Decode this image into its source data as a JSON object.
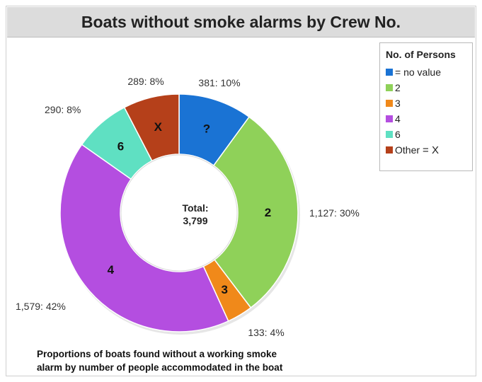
{
  "chart_data": {
    "type": "pie",
    "title": "Boats without smoke alarms by Crew No.",
    "center_label": [
      "Total:",
      "3,799"
    ],
    "legend_title": "No. of Persons",
    "legend_position": "top-right",
    "slices": [
      {
        "legend": "= no value",
        "legend_extra": "",
        "category_label": "?",
        "value": 381,
        "percent": 10,
        "value_label": "381: 10%",
        "color": "#1a73d4"
      },
      {
        "legend": "2",
        "legend_extra": "",
        "category_label": "2",
        "value": 1127,
        "percent": 30,
        "value_label": "1,127: 30%",
        "color": "#8fd159"
      },
      {
        "legend": "3",
        "legend_extra": "",
        "category_label": "3",
        "value": 133,
        "percent": 4,
        "value_label": "133: 4%",
        "color": "#f0891a"
      },
      {
        "legend": "4",
        "legend_extra": "",
        "category_label": "4",
        "value": 1579,
        "percent": 42,
        "value_label": "1,579: 42%",
        "color": "#b44ee0"
      },
      {
        "legend": "6",
        "legend_extra": "",
        "category_label": "6",
        "value": 290,
        "percent": 8,
        "value_label": "290: 8%",
        "color": "#5fe0c2"
      },
      {
        "legend": "Other",
        "legend_extra": "= X",
        "category_label": "X",
        "value": 289,
        "percent": 8,
        "value_label": "289: 8%",
        "color": "#b5401a"
      }
    ],
    "caption": [
      "Proportions of boats found without a working smoke",
      "alarm by number of people accommodated in the boat"
    ]
  }
}
